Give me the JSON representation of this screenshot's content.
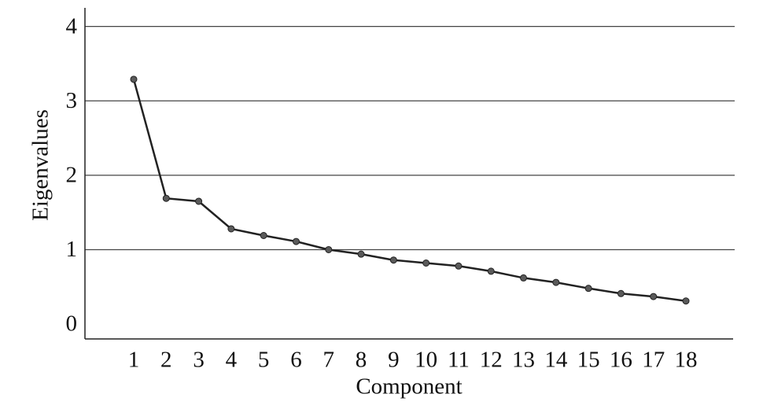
{
  "chart_data": {
    "type": "line",
    "x_label": "Component",
    "y_label": "Eigenvalues",
    "categories": [
      "1",
      "2",
      "3",
      "4",
      "5",
      "6",
      "7",
      "8",
      "9",
      "10",
      "11",
      "12",
      "13",
      "14",
      "15",
      "16",
      "17",
      "18"
    ],
    "series": [
      {
        "name": "Eigenvalues",
        "color": "#222222",
        "marker_color": "#5a5a5a",
        "values": [
          3.29,
          1.69,
          1.65,
          1.28,
          1.19,
          1.11,
          1.0,
          0.94,
          0.86,
          0.82,
          0.78,
          0.71,
          0.62,
          0.56,
          0.48,
          0.41,
          0.37,
          0.31
        ]
      }
    ],
    "ylim": [
      -0.2,
      4.25
    ],
    "yticks": [
      0,
      1,
      2,
      3,
      4
    ],
    "grid": true
  }
}
